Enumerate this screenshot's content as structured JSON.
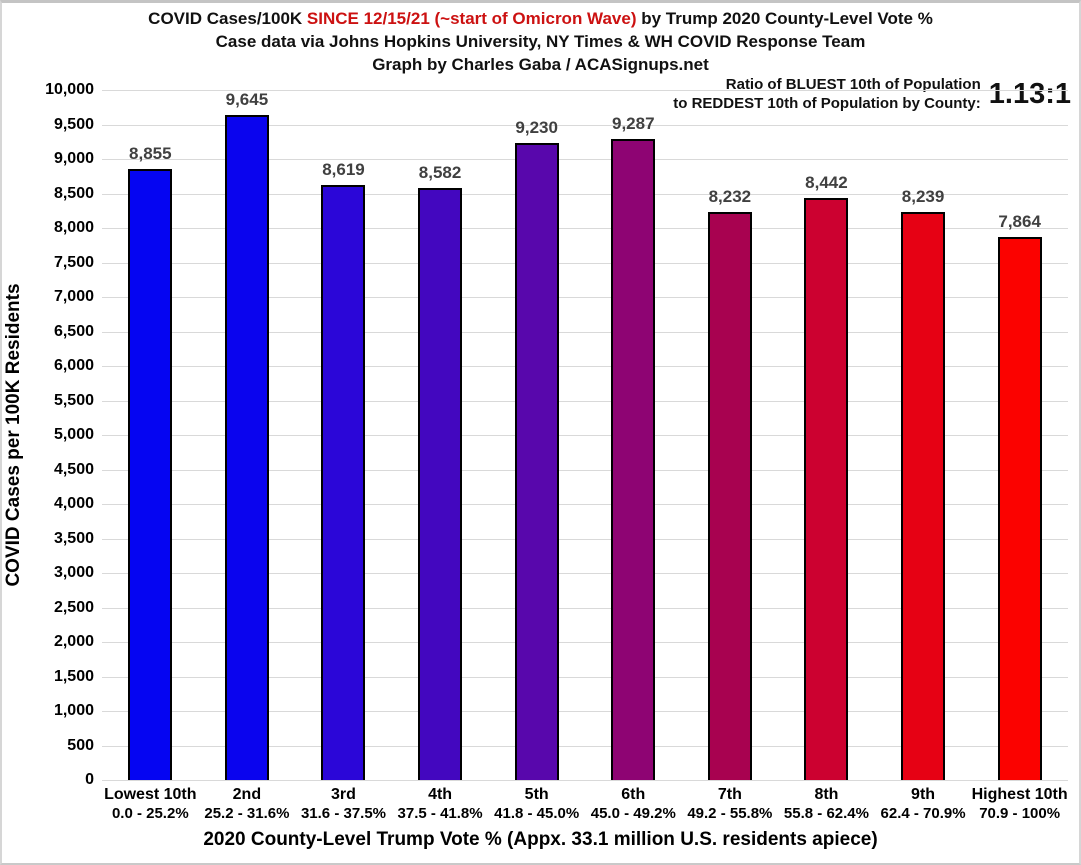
{
  "header": {
    "title_black_1": "COVID Cases/100K ",
    "title_red": "SINCE 12/15/21 (~start of Omicron Wave)",
    "title_black_2": " by Trump 2020 County-Level Vote %",
    "subtitle": "Case data via Johns Hopkins University, NY Times & WH COVID Response Team",
    "credit": "Graph by Charles Gaba / ACASignups.net",
    "red_color": "#CC1111"
  },
  "ratio_note": {
    "line1": "Ratio of BLUEST 10th of Population",
    "line2": "to REDDEST 10th of Population by County:",
    "value": "1.13:1"
  },
  "chart_data": {
    "type": "bar",
    "title": "COVID Cases/100K SINCE 12/15/21 (~start of Omicron Wave) by Trump 2020 County-Level Vote %",
    "subtitle": "Case data via Johns Hopkins University, NY Times & WH COVID Response Team",
    "credit": "Graph by Charles Gaba / ACASignups.net",
    "xlabel": "2020 County-Level Trump Vote % (Appx. 33.1 million U.S. residents apiece)",
    "ylabel": "COVID Cases per 100K Residents",
    "ylim": [
      0,
      10000
    ],
    "ytick_step": 500,
    "grid": true,
    "legend": false,
    "categories": [
      "Lowest 10th",
      "2nd",
      "3rd",
      "4th",
      "5th",
      "6th",
      "7th",
      "8th",
      "9th",
      "Highest 10th"
    ],
    "category_ranges": [
      "0.0 - 25.2%",
      "25.2 - 31.6%",
      "31.6 - 37.5%",
      "37.5 - 41.8%",
      "41.8 - 45.0%",
      "45.0 - 49.2%",
      "49.2 - 55.8%",
      "55.8 - 62.4%",
      "62.4 - 70.9%",
      "70.9 - 100%"
    ],
    "values": [
      8855,
      9645,
      8619,
      8582,
      9230,
      9287,
      8232,
      8442,
      8239,
      7864
    ],
    "bar_colors": [
      "#0505F2",
      "#0A04EE",
      "#2B06D8",
      "#4307BF",
      "#5807AC",
      "#8E0473",
      "#A80250",
      "#CC0130",
      "#E60114",
      "#FB0200"
    ],
    "bar_border_color": "#000000",
    "gridline_color": "#D9D9D9",
    "value_label_color": "#404040",
    "annotation": "Ratio of BLUEST 10th of Population to REDDEST 10th of Population by County: 1.13:1"
  }
}
